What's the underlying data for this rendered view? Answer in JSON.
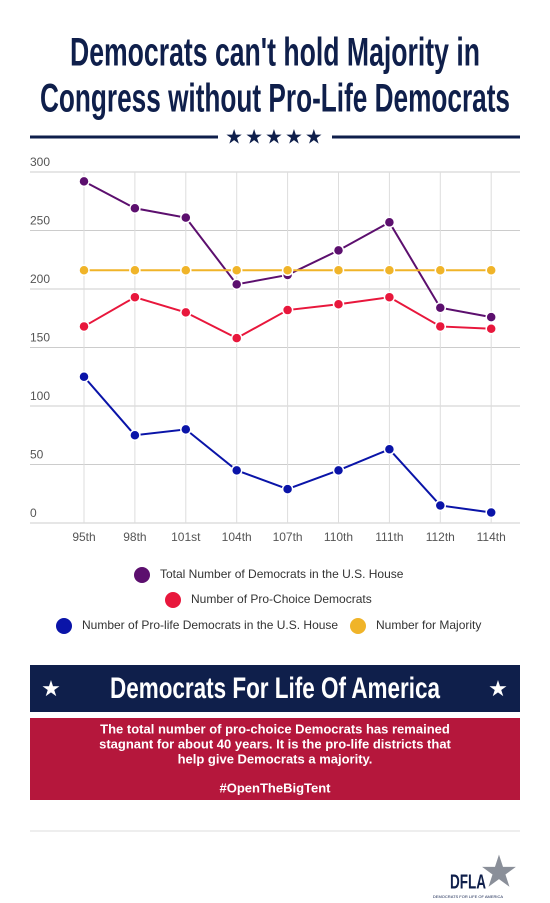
{
  "chart_data": {
    "type": "line",
    "title": [
      "Democrats can't hold Majority in",
      "Congress without Pro-Life Democrats"
    ],
    "categories": [
      "95th",
      "98th",
      "101st",
      "104th",
      "107th",
      "110th",
      "111th",
      "112th",
      "114th"
    ],
    "series": [
      {
        "name": "Total Number of Democrats in the U.S. House",
        "color": "#5c0f6e",
        "values": [
          292,
          269,
          261,
          204,
          212,
          233,
          257,
          184,
          176
        ]
      },
      {
        "name": "Number of Pro-Choice Democrats",
        "color": "#e8173c",
        "values": [
          168,
          193,
          180,
          158,
          182,
          187,
          193,
          168,
          166
        ]
      },
      {
        "name": "Number of Pro-life Democrats in the U.S. House",
        "color": "#0a14a8",
        "values": [
          125,
          75,
          80,
          45,
          29,
          45,
          63,
          15,
          9
        ]
      },
      {
        "name": "Number for Majority",
        "color": "#f0b429",
        "values": [
          216,
          216,
          216,
          216,
          216,
          216,
          216,
          216,
          216
        ]
      }
    ],
    "ylim": [
      0,
      300
    ],
    "yticks": [
      0,
      50,
      100,
      150,
      200,
      250,
      300
    ],
    "grid": true
  },
  "banner": {
    "title": "Democrats For Life Of America",
    "text": [
      "The total number of pro-choice Democrats has remained",
      "stagnant for about 40 years. It is the pro-life districts that",
      "help give Democrats a majority."
    ],
    "hashtag": "#OpenTheBigTent"
  },
  "logo": {
    "mark": "DFLA",
    "tagline": "DEMOCRATS FOR LIFE OF AMERICA"
  }
}
